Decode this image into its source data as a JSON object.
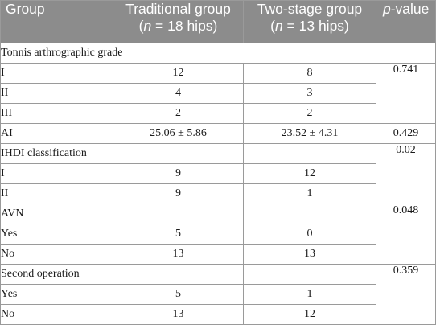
{
  "header": {
    "group": "Group",
    "traditional_line1": "Traditional group",
    "traditional_n": "n",
    "traditional_rest": " = 18 hips)",
    "twostage_line1": "Two-stage group",
    "twostage_n": "n",
    "twostage_rest": " = 13 hips)",
    "open_paren": "(",
    "pvalue_p": "p",
    "pvalue_rest": "-value"
  },
  "tonnis": {
    "title": "Tonnis arthrographic grade",
    "p": "0.741",
    "rows": [
      {
        "label": "I",
        "trad": "12",
        "two": "8"
      },
      {
        "label": "II",
        "trad": "4",
        "two": "3"
      },
      {
        "label": "III",
        "trad": "2",
        "two": "2"
      }
    ]
  },
  "ai": {
    "label": "AI",
    "trad": "25.06 ± 5.86",
    "two": "23.52 ± 4.31",
    "p": "0.429"
  },
  "ihdi": {
    "title": "IHDI classification",
    "p": "0.02",
    "rows": [
      {
        "label": "I",
        "trad": "9",
        "two": "12"
      },
      {
        "label": "II",
        "trad": "9",
        "two": "1"
      }
    ]
  },
  "avn": {
    "title": "AVN",
    "p": "0.048",
    "rows": [
      {
        "label": "Yes",
        "trad": "5",
        "two": "0"
      },
      {
        "label": "No",
        "trad": "13",
        "two": "13"
      }
    ]
  },
  "second": {
    "title": "Second operation",
    "p": "0.359",
    "rows": [
      {
        "label": "Yes",
        "trad": "5",
        "two": "1"
      },
      {
        "label": "No",
        "trad": "13",
        "two": "12"
      }
    ]
  }
}
